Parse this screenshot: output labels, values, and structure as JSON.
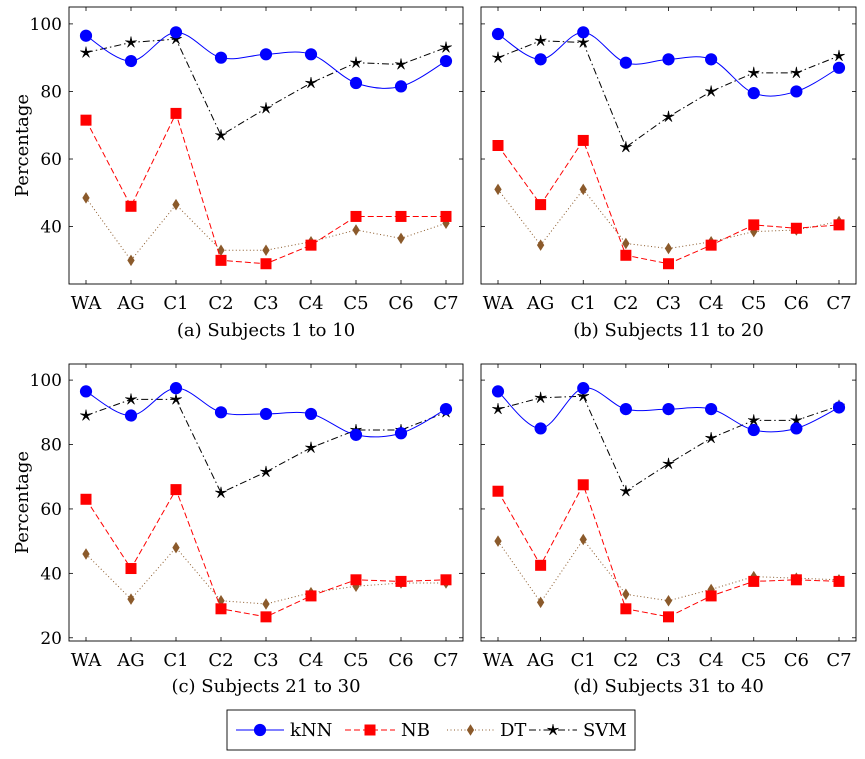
{
  "categories": [
    "WA",
    "AG",
    "C1",
    "C2",
    "C3",
    "C4",
    "C5",
    "C6",
    "C7"
  ],
  "legend": [
    {
      "name": "kNN",
      "color": "#0000ff",
      "marker": "circle",
      "dash": "solid"
    },
    {
      "name": "NB",
      "color": "#ff0000",
      "marker": "square",
      "dash": "dashed"
    },
    {
      "name": "DT",
      "color": "#8b5a2b",
      "marker": "diamond",
      "dash": "dotted"
    },
    {
      "name": "SVM",
      "color": "#000000",
      "marker": "star",
      "dash": "dashdot"
    }
  ],
  "chart_data": [
    {
      "type": "line",
      "caption": "(a) Subjects 1 to 10",
      "ylabel": "Percentage",
      "ylim": [
        23,
        105
      ],
      "yticks": [
        40,
        60,
        80,
        100
      ],
      "categories": [
        "WA",
        "AG",
        "C1",
        "C2",
        "C3",
        "C4",
        "C5",
        "C6",
        "C7"
      ],
      "series": [
        {
          "name": "kNN",
          "values": [
            96.5,
            89,
            97.5,
            90,
            91,
            91,
            82.5,
            81.5,
            89
          ]
        },
        {
          "name": "NB",
          "values": [
            71.5,
            46,
            73.5,
            30,
            29,
            34.5,
            43,
            43,
            43
          ]
        },
        {
          "name": "DT",
          "values": [
            48.5,
            30,
            46.5,
            33,
            33,
            35.5,
            39,
            36.5,
            41
          ]
        },
        {
          "name": "SVM",
          "values": [
            91.5,
            94.5,
            95.5,
            67,
            75,
            82.5,
            88.5,
            88,
            93
          ]
        }
      ]
    },
    {
      "type": "line",
      "caption": "(b) Subjects 11 to 20",
      "ylabel": "",
      "ylim": [
        23,
        105
      ],
      "yticks": [
        40,
        60,
        80,
        100
      ],
      "categories": [
        "WA",
        "AG",
        "C1",
        "C2",
        "C3",
        "C4",
        "C5",
        "C6",
        "C7"
      ],
      "series": [
        {
          "name": "kNN",
          "values": [
            97,
            89.5,
            97.5,
            88.5,
            89.5,
            89.5,
            79.5,
            80,
            87
          ]
        },
        {
          "name": "NB",
          "values": [
            64,
            46.5,
            65.5,
            31.5,
            29,
            34.5,
            40.5,
            39.5,
            40.5
          ]
        },
        {
          "name": "DT",
          "values": [
            51,
            34.5,
            51,
            35,
            33.5,
            35.5,
            38.5,
            39,
            41.5
          ]
        },
        {
          "name": "SVM",
          "values": [
            90,
            95,
            94.5,
            63.5,
            72.5,
            80,
            85.5,
            85.5,
            90.5
          ]
        }
      ]
    },
    {
      "type": "line",
      "caption": "(c) Subjects 21 to 30",
      "ylabel": "Percentage",
      "ylim": [
        19,
        105
      ],
      "yticks": [
        20,
        40,
        60,
        80,
        100
      ],
      "categories": [
        "WA",
        "AG",
        "C1",
        "C2",
        "C3",
        "C4",
        "C5",
        "C6",
        "C7"
      ],
      "series": [
        {
          "name": "kNN",
          "values": [
            96.5,
            89,
            97.5,
            90,
            89.5,
            89.5,
            83,
            83.5,
            91
          ]
        },
        {
          "name": "NB",
          "values": [
            63,
            41.5,
            66,
            29,
            26.5,
            33,
            38,
            37.5,
            38
          ]
        },
        {
          "name": "DT",
          "values": [
            46,
            32,
            48,
            31.5,
            30.5,
            34,
            36,
            37,
            37
          ]
        },
        {
          "name": "SVM",
          "values": [
            89,
            94,
            94,
            65,
            71.5,
            79,
            84.5,
            84.5,
            90
          ]
        }
      ]
    },
    {
      "type": "line",
      "caption": "(d) Subjects 31 to 40",
      "ylabel": "",
      "ylim": [
        19,
        105
      ],
      "yticks": [
        20,
        40,
        60,
        80,
        100
      ],
      "categories": [
        "WA",
        "AG",
        "C1",
        "C2",
        "C3",
        "C4",
        "C5",
        "C6",
        "C7"
      ],
      "series": [
        {
          "name": "kNN",
          "values": [
            96.5,
            85,
            97.5,
            91,
            91,
            91,
            84.5,
            85,
            91.5
          ]
        },
        {
          "name": "NB",
          "values": [
            65.5,
            42.5,
            67.5,
            29,
            26.5,
            33,
            37.5,
            38,
            37.5
          ]
        },
        {
          "name": "DT",
          "values": [
            50,
            31,
            50.5,
            33.5,
            31.5,
            35,
            39,
            38.5,
            38
          ]
        },
        {
          "name": "SVM",
          "values": [
            91,
            94.5,
            95,
            65.5,
            74,
            82,
            87.5,
            87.5,
            92
          ]
        }
      ]
    }
  ]
}
